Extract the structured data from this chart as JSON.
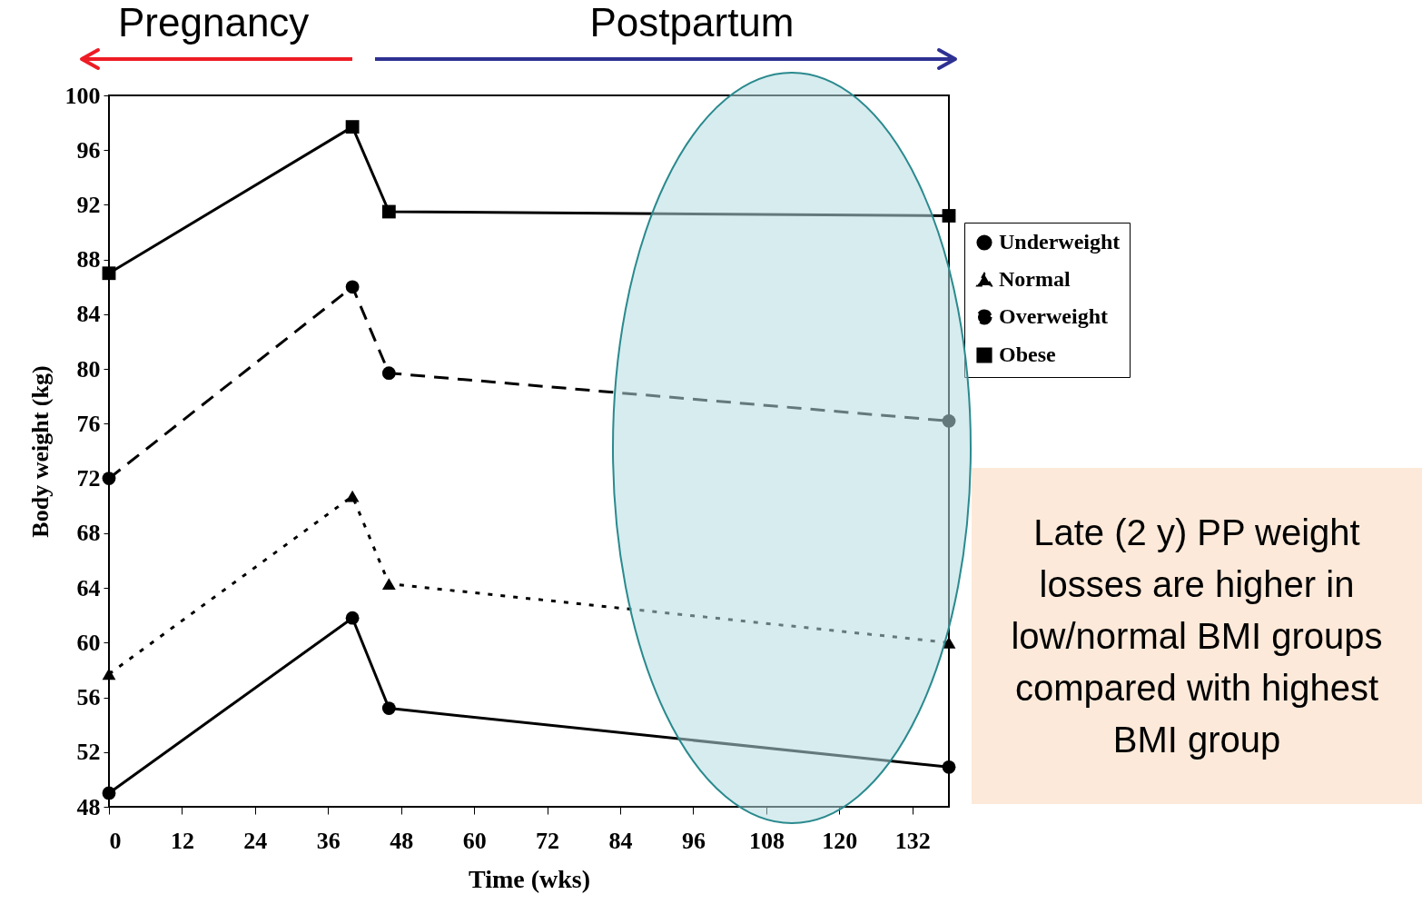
{
  "chart_data": {
    "type": "line",
    "xlabel": "Time (wks)",
    "ylabel": "Body weight (kg)",
    "x": [
      0,
      40,
      46,
      138
    ],
    "series": [
      {
        "name": "Underweight",
        "color": "#000000",
        "marker": "circle",
        "line_style": "solid",
        "values": [
          49,
          61.8,
          55.2,
          50.9
        ]
      },
      {
        "name": "Normal",
        "color": "#000000",
        "marker": "triangle",
        "line_style": "dotted",
        "values": [
          57.7,
          70.7,
          64.3,
          60
        ]
      },
      {
        "name": "Overweight",
        "color": "#000000",
        "marker": "circle",
        "line_style": "dashed",
        "values": [
          72,
          86,
          79.7,
          76.2
        ]
      },
      {
        "name": "Obese",
        "color": "#000000",
        "marker": "square",
        "line_style": "solid",
        "values": [
          87,
          97.7,
          91.5,
          91.2
        ]
      }
    ],
    "xlim": [
      0,
      138
    ],
    "xticks": [
      0,
      12,
      24,
      36,
      48,
      60,
      72,
      84,
      96,
      108,
      120,
      132
    ],
    "ylim": [
      48,
      100
    ],
    "yticks": [
      48,
      52,
      56,
      60,
      64,
      68,
      72,
      76,
      80,
      84,
      88,
      92,
      96,
      100
    ],
    "grid": false,
    "legend": "right",
    "annotations": [
      "Pregnancy",
      "Postpartum",
      "Late (2 y) PP weight losses are higher in low/normal BMI groups compared with highest BMI group"
    ]
  }
}
